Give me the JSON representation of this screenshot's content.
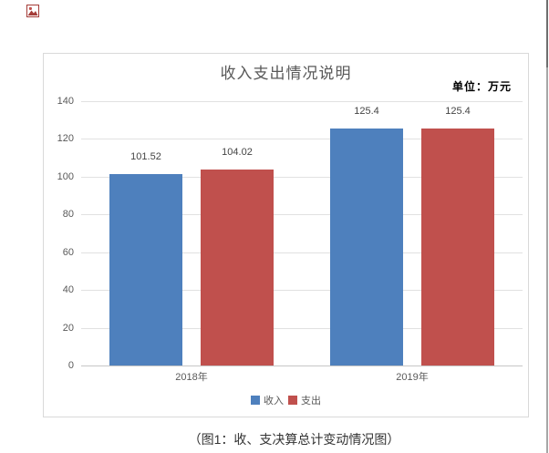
{
  "page": {
    "caption": "（图1：收、支决算总计变动情况图）"
  },
  "chart_data": {
    "type": "bar",
    "title": "收入支出情况说明",
    "unit_label": "单位：万元",
    "categories": [
      "2018年",
      "2019年"
    ],
    "series": [
      {
        "name": "收入",
        "color": "#4e80bd",
        "values": [
          101.52,
          125.4
        ],
        "labels": [
          "101.52",
          "125.4"
        ]
      },
      {
        "name": "支出",
        "color": "#c0504d",
        "values": [
          104.02,
          125.4
        ],
        "labels": [
          "104.02",
          "125.4"
        ]
      }
    ],
    "ylim": [
      0,
      140
    ],
    "yticks": [
      0,
      20,
      40,
      60,
      80,
      100,
      120,
      140
    ],
    "grid": true,
    "legend_position": "bottom",
    "colors": {
      "income": "#4e80bd",
      "expense": "#c0504d",
      "grid": "#e1e1e1",
      "axis_text": "#595959"
    }
  }
}
